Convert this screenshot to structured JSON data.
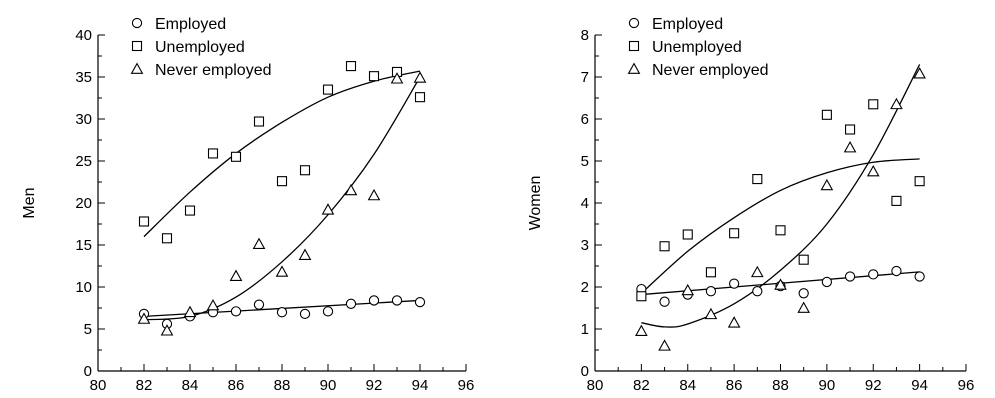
{
  "chart_data": [
    {
      "type": "scatter",
      "title": "",
      "xlabel": "",
      "ylabel": "Men",
      "xlim": [
        80,
        96
      ],
      "ylim": [
        0,
        40
      ],
      "xticks": [
        80,
        82,
        84,
        86,
        88,
        90,
        92,
        94,
        96
      ],
      "yticks": [
        0,
        5,
        10,
        15,
        20,
        25,
        30,
        35,
        40
      ],
      "grid": false,
      "legend_position": "top-left",
      "series": [
        {
          "name": "Employed",
          "marker": "circle",
          "x": [
            82,
            83,
            84,
            85,
            86,
            87,
            88,
            89,
            90,
            91,
            92,
            93,
            94
          ],
          "y": [
            6.8,
            5.6,
            6.5,
            7.0,
            7.1,
            7.9,
            7.0,
            6.8,
            7.1,
            8.0,
            8.4,
            8.4,
            8.2
          ],
          "fit": {
            "x": [
              82,
              94
            ],
            "y": [
              6.5,
              8.4
            ]
          }
        },
        {
          "name": "Unemployed",
          "marker": "square",
          "x": [
            82,
            83,
            84,
            85,
            86,
            87,
            88,
            89,
            90,
            91,
            92,
            93,
            94
          ],
          "y": [
            17.8,
            15.8,
            19.1,
            25.9,
            25.5,
            29.7,
            22.6,
            23.9,
            33.5,
            36.3,
            35.1,
            35.6,
            32.6
          ],
          "fit": {
            "x": [
              82,
              84,
              86,
              88,
              90,
              92,
              94
            ],
            "y": [
              16.0,
              21.3,
              25.9,
              29.6,
              32.6,
              34.5,
              35.7
            ]
          }
        },
        {
          "name": "Never employed",
          "marker": "triangle",
          "x": [
            82,
            83,
            84,
            85,
            86,
            87,
            88,
            89,
            90,
            91,
            92,
            93,
            94
          ],
          "y": [
            6.2,
            4.8,
            7.0,
            7.8,
            11.3,
            15.1,
            11.8,
            13.8,
            19.2,
            21.5,
            20.9,
            34.8,
            34.9
          ],
          "fit": {
            "x": [
              82,
              84,
              86,
              88,
              90,
              92,
              94
            ],
            "y": [
              6.1,
              6.5,
              8.8,
              13.0,
              18.6,
              25.8,
              35.0
            ]
          }
        }
      ]
    },
    {
      "type": "scatter",
      "title": "",
      "xlabel": "",
      "ylabel": "Women",
      "xlim": [
        80,
        96
      ],
      "ylim": [
        0,
        8
      ],
      "xticks": [
        80,
        82,
        84,
        86,
        88,
        90,
        92,
        94,
        96
      ],
      "yticks": [
        0,
        1,
        2,
        3,
        4,
        5,
        6,
        7,
        8
      ],
      "grid": false,
      "legend_position": "top-left",
      "series": [
        {
          "name": "Employed",
          "marker": "circle",
          "x": [
            82,
            83,
            84,
            85,
            86,
            87,
            88,
            89,
            90,
            91,
            92,
            93,
            94
          ],
          "y": [
            1.95,
            1.65,
            1.82,
            1.9,
            2.08,
            1.9,
            2.02,
            1.85,
            2.12,
            2.25,
            2.3,
            2.38,
            2.25
          ],
          "fit": {
            "x": [
              82,
              94
            ],
            "y": [
              1.82,
              2.36
            ]
          }
        },
        {
          "name": "Unemployed",
          "marker": "square",
          "x": [
            82,
            83,
            84,
            85,
            86,
            87,
            88,
            89,
            90,
            91,
            92,
            93,
            94
          ],
          "y": [
            1.78,
            2.97,
            3.25,
            2.35,
            3.28,
            4.57,
            3.35,
            2.65,
            6.1,
            5.75,
            6.35,
            4.05,
            4.52
          ],
          "fit": {
            "x": [
              82,
              84,
              86,
              88,
              90,
              92,
              94
            ],
            "y": [
              1.85,
              2.85,
              3.65,
              4.3,
              4.72,
              4.97,
              5.05
            ]
          }
        },
        {
          "name": "Never employed",
          "marker": "triangle",
          "x": [
            82,
            83,
            84,
            85,
            86,
            87,
            88,
            89,
            90,
            91,
            92,
            93,
            94
          ],
          "y": [
            0.95,
            0.6,
            1.92,
            1.35,
            1.15,
            2.35,
            2.05,
            1.5,
            4.42,
            5.32,
            4.75,
            6.35,
            7.08
          ],
          "fit": {
            "x": [
              82,
              83,
              84,
              86,
              88,
              90,
              92,
              94
            ],
            "y": [
              1.15,
              1.05,
              1.12,
              1.6,
              2.4,
              3.5,
              5.15,
              7.3
            ]
          }
        }
      ]
    }
  ]
}
